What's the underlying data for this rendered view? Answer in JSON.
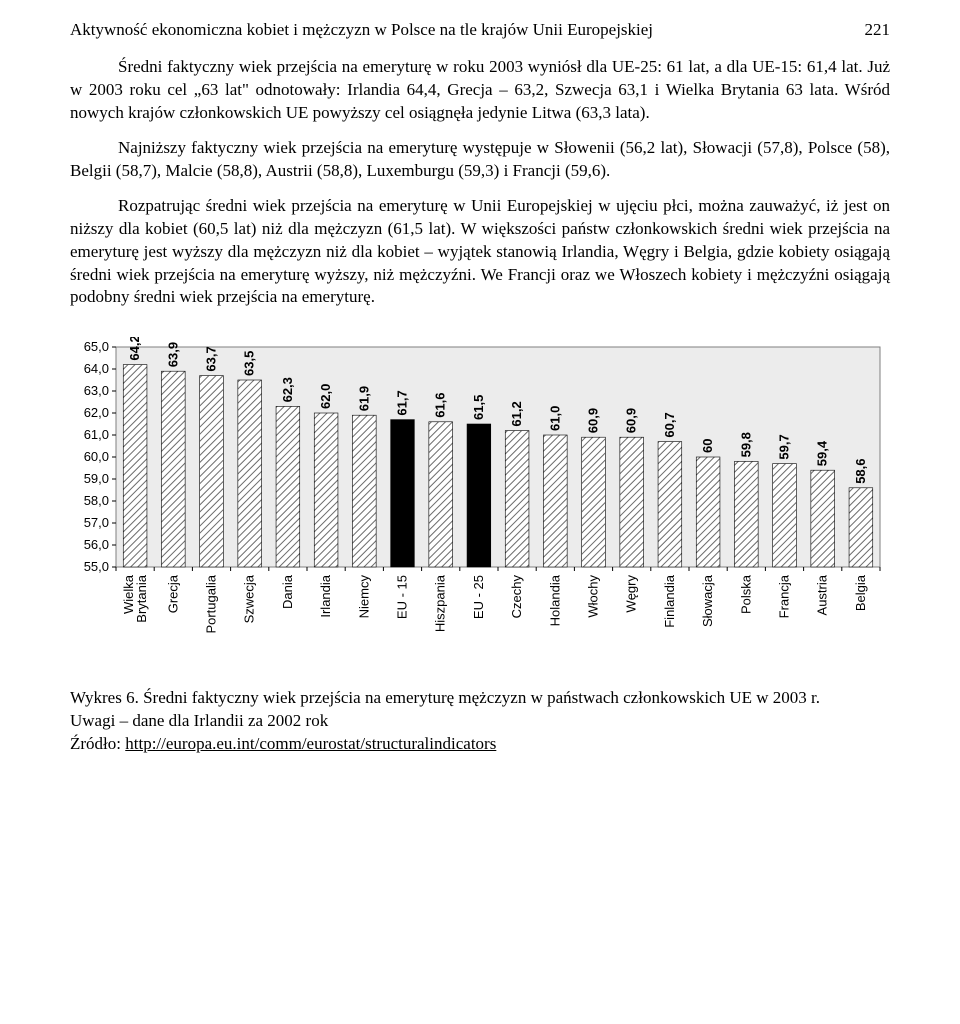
{
  "header": {
    "title": "Aktywność ekonomiczna kobiet i mężczyzn w Polsce na tle krajów Unii Europejskiej",
    "page": "221"
  },
  "paragraphs": {
    "p1a": "Średni faktyczny wiek przejścia na emeryturę w roku 2003 wyniósł dla UE-25: 61 lat, a dla UE-15: 61,4 lat. Już w 2003 roku cel „63 lat\" odnotowały: Irlandia 64,4, Grecja – 63,2, Szwecja 63,1 i Wielka Brytania 63 lata. Wśród nowych krajów członkowskich UE powyższy cel osiągnęła jedynie Litwa (63,3 lata).",
    "p1b": "Najniższy faktyczny wiek przejścia na emeryturę  występuje w Słowenii (56,2 lat), Słowacji (57,8), Polsce (58), Belgii (58,7), Malcie (58,8), Austrii (58,8), Luxemburgu (59,3) i Francji (59,6).",
    "p2": "Rozpatrując średni wiek przejścia na emeryturę w Unii Europejskiej w ujęciu płci, można zauważyć, iż jest on niższy dla kobiet (60,5 lat) niż dla mężczyzn (61,5 lat). W większości państw członkowskich średni wiek przejścia na emeryturę jest wyższy dla mężczyzn niż dla kobiet – wyjątek stanowią Irlandia, Węgry i Belgia, gdzie kobiety osiągają średni wiek przejścia na emeryturę wyższy, niż mężczyźni. We Francji oraz we Włoszech kobiety i mężczyźni osiągają podobny średni wiek przejścia na emeryturę."
  },
  "chart": {
    "type": "bar",
    "categories": [
      "Wielka\nBrytania",
      "Grecja",
      "Portugalia",
      "Szwecja",
      "Dania",
      "Irlandia",
      "Niemcy",
      "EU - 15",
      "Hiszpania",
      "EU - 25",
      "Czechy",
      "Holandia",
      "Włochy",
      "Węgry",
      "Finlandia",
      "Słowacja",
      "Polska",
      "Francja",
      "Austria",
      "Belgia"
    ],
    "values": [
      64.2,
      63.9,
      63.7,
      63.5,
      62.3,
      62.0,
      61.9,
      61.7,
      61.6,
      61.5,
      61.2,
      61.0,
      60.9,
      60.9,
      60.7,
      60.0,
      59.8,
      59.7,
      59.4,
      58.6
    ],
    "value_labels": [
      "64,2",
      "63,9",
      "63,7",
      "63,5",
      "62,3",
      "62,0",
      "61,9",
      "61,7",
      "61,6",
      "61,5",
      "61,2",
      "61,0",
      "60,9",
      "60,9",
      "60,7",
      "60",
      "59,8",
      "59,7",
      "59,4",
      "58,6"
    ],
    "highlight_indices": [
      7,
      9
    ],
    "bar_color_pattern": "#a0a0a0",
    "bar_color_solid": "#000000",
    "ymin": 55.0,
    "ymax": 65.0,
    "ytick_step": 1.0,
    "ytick_labels": [
      "55,0",
      "56,0",
      "57,0",
      "58,0",
      "59,0",
      "60,0",
      "61,0",
      "62,0",
      "63,0",
      "64,0",
      "65,0"
    ],
    "bar_width_rel": 0.62,
    "background_color": "#ffffff",
    "border_color": "#7f7f7f",
    "inner_fill": "#ececec",
    "axis_fontsize": 13,
    "label_fontsize": 13
  },
  "caption": {
    "line1": "Wykres 6. Średni faktyczny wiek przejścia na emeryturę mężczyzn w państwach członkowskich UE  w 2003 r.",
    "line2": "Uwagi – dane dla Irlandii za 2002 rok",
    "line3_prefix": "Źródło: ",
    "line3_link": "http://europa.eu.int/comm/eurostat/structuralindicators"
  }
}
